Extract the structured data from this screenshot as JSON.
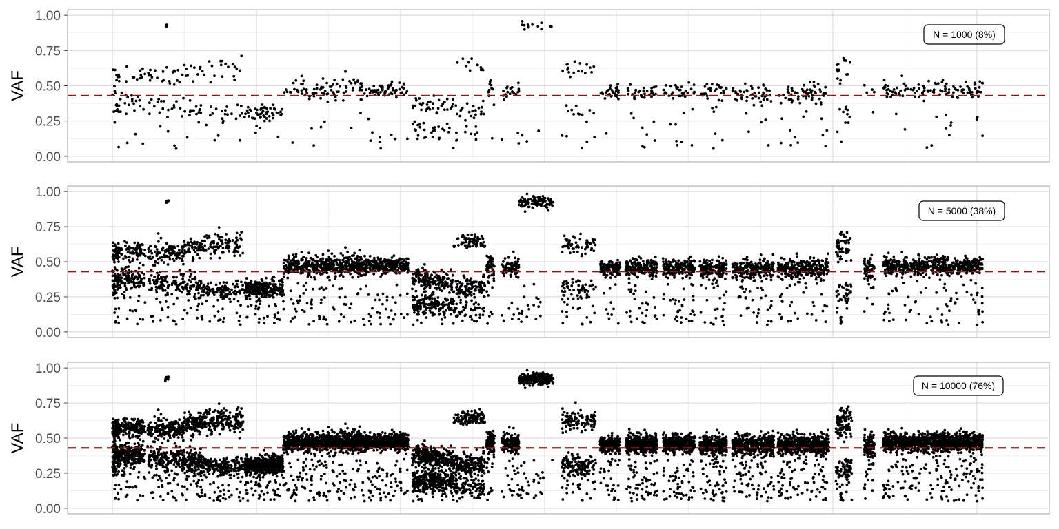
{
  "chart_data": [
    {
      "type": "scatter",
      "ylabel": "VAF",
      "ylim": [
        -0.04,
        1.04
      ],
      "yticks": [
        0,
        0.25,
        0.5,
        0.75,
        1
      ],
      "ytick_labels": [
        "0.00",
        "0.25",
        "0.50",
        "0.75",
        "1.00"
      ],
      "reference_line": 0.43,
      "annotation": "N = 1000 (8%)",
      "n_points": 1000,
      "grid": true
    },
    {
      "type": "scatter",
      "ylabel": "VAF",
      "ylim": [
        -0.04,
        1.04
      ],
      "yticks": [
        0,
        0.25,
        0.5,
        0.75,
        1
      ],
      "ytick_labels": [
        "0.00",
        "0.25",
        "0.50",
        "0.75",
        "1.00"
      ],
      "reference_line": 0.43,
      "annotation": "N = 5000 (38%)",
      "n_points": 5000,
      "grid": true
    },
    {
      "type": "scatter",
      "ylabel": "VAF",
      "ylim": [
        -0.04,
        1.04
      ],
      "yticks": [
        0,
        0.25,
        0.5,
        0.75,
        1
      ],
      "ytick_labels": [
        "0.00",
        "0.25",
        "0.50",
        "0.75",
        "1.00"
      ],
      "reference_line": 0.43,
      "annotation": "N = 10000 (76%)",
      "n_points": 10000,
      "grid": true
    }
  ],
  "colors": {
    "points": "#000000",
    "reference_line": "#8b1a1a",
    "grid_major": "#d9d9d9",
    "grid_minor": "#ececec",
    "panel_border": "#b3b3b3",
    "tick_text": "#4d4d4d"
  },
  "segments": [
    {
      "x0": 0.0,
      "x1": 0.012,
      "clusters": [
        [
          0.38,
          0.04,
          0.5
        ],
        [
          0.56,
          0.04,
          0.5
        ]
      ],
      "density": 0.6
    },
    {
      "x0": 0.013,
      "x1": 0.058,
      "clusters": [
        [
          0.38,
          0.035,
          0.5
        ],
        [
          0.57,
          0.035,
          0.5
        ]
      ],
      "density": 1.1
    },
    {
      "x0": 0.062,
      "x1": 0.125,
      "clusters": [
        [
          0.36,
          0.04,
          0.45
        ],
        [
          0.56,
          0.04,
          0.55
        ]
      ],
      "density": 1.2
    },
    {
      "x0": 0.125,
      "x1": 0.16,
      "clusters": [
        [
          0.33,
          0.04,
          0.55
        ],
        [
          0.6,
          0.04,
          0.45
        ]
      ],
      "density": 0.9
    },
    {
      "x0": 0.16,
      "x1": 0.23,
      "clusters": [
        [
          0.3,
          0.035,
          0.5
        ],
        [
          0.62,
          0.045,
          0.5
        ]
      ],
      "density": 1.2
    },
    {
      "x0": 0.232,
      "x1": 0.3,
      "clusters": [
        [
          0.31,
          0.03,
          1.0
        ]
      ],
      "density": 1.9
    },
    {
      "x0": 0.3,
      "x1": 0.44,
      "clusters": [
        [
          0.47,
          0.035,
          1.0
        ]
      ],
      "density": 3.1
    },
    {
      "x0": 0.44,
      "x1": 0.52,
      "clusters": [
        [
          0.47,
          0.03,
          1.0
        ]
      ],
      "density": 1.8
    },
    {
      "x0": 0.527,
      "x1": 0.571,
      "clusters": [
        [
          0.37,
          0.035,
          0.55
        ],
        [
          0.19,
          0.035,
          0.45
        ]
      ],
      "density": 1.3
    },
    {
      "x0": 0.571,
      "x1": 0.6,
      "clusters": [
        [
          0.35,
          0.035,
          0.55
        ],
        [
          0.19,
          0.035,
          0.45
        ]
      ],
      "density": 0.7
    },
    {
      "x0": 0.6,
      "x1": 0.655,
      "clusters": [
        [
          0.31,
          0.04,
          0.45
        ],
        [
          0.64,
          0.025,
          0.35
        ],
        [
          0.15,
          0.03,
          0.2
        ]
      ],
      "density": 1.3
    },
    {
      "x0": 0.658,
      "x1": 0.672,
      "clusters": [
        [
          0.47,
          0.04,
          1.0
        ]
      ],
      "density": 0.35
    },
    {
      "x0": 0.685,
      "x1": 0.715,
      "clusters": [
        [
          0.46,
          0.035,
          1.0
        ]
      ],
      "density": 0.55
    },
    {
      "x0": 0.715,
      "x1": 0.775,
      "clusters": [
        [
          0.92,
          0.02,
          1.0
        ]
      ],
      "density": 0.8
    },
    {
      "x0": 0.79,
      "x1": 0.85,
      "clusters": [
        [
          0.3,
          0.04,
          0.55
        ],
        [
          0.62,
          0.04,
          0.45
        ]
      ],
      "density": 0.8
    },
    {
      "x0": 0.857,
      "x1": 0.892,
      "clusters": [
        [
          0.45,
          0.03,
          1.0
        ]
      ],
      "density": 0.8
    },
    {
      "x0": 0.902,
      "x1": 0.958,
      "clusters": [
        [
          0.46,
          0.035,
          1.0
        ]
      ],
      "density": 1.4
    },
    {
      "x0": 0.968,
      "x1": 1.024,
      "clusters": [
        [
          0.46,
          0.03,
          1.0
        ]
      ],
      "density": 1.3
    },
    {
      "x0": 1.032,
      "x1": 1.08,
      "clusters": [
        [
          0.45,
          0.035,
          1.0
        ]
      ],
      "density": 1.1
    },
    {
      "x0": 1.09,
      "x1": 1.163,
      "clusters": [
        [
          0.45,
          0.035,
          1.0
        ]
      ],
      "density": 1.6
    },
    {
      "x0": 1.17,
      "x1": 1.26,
      "clusters": [
        [
          0.45,
          0.035,
          1.0
        ]
      ],
      "density": 2.0
    },
    {
      "x0": 1.272,
      "x1": 1.3,
      "clusters": [
        [
          0.28,
          0.04,
          0.35
        ],
        [
          0.6,
          0.05,
          0.65
        ]
      ],
      "density": 0.55
    },
    {
      "x0": 1.322,
      "x1": 1.34,
      "clusters": [
        [
          0.45,
          0.04,
          1.0
        ]
      ],
      "density": 0.4
    },
    {
      "x0": 1.355,
      "x1": 1.53,
      "clusters": [
        [
          0.47,
          0.035,
          1.0
        ]
      ],
      "density": 3.8
    }
  ]
}
